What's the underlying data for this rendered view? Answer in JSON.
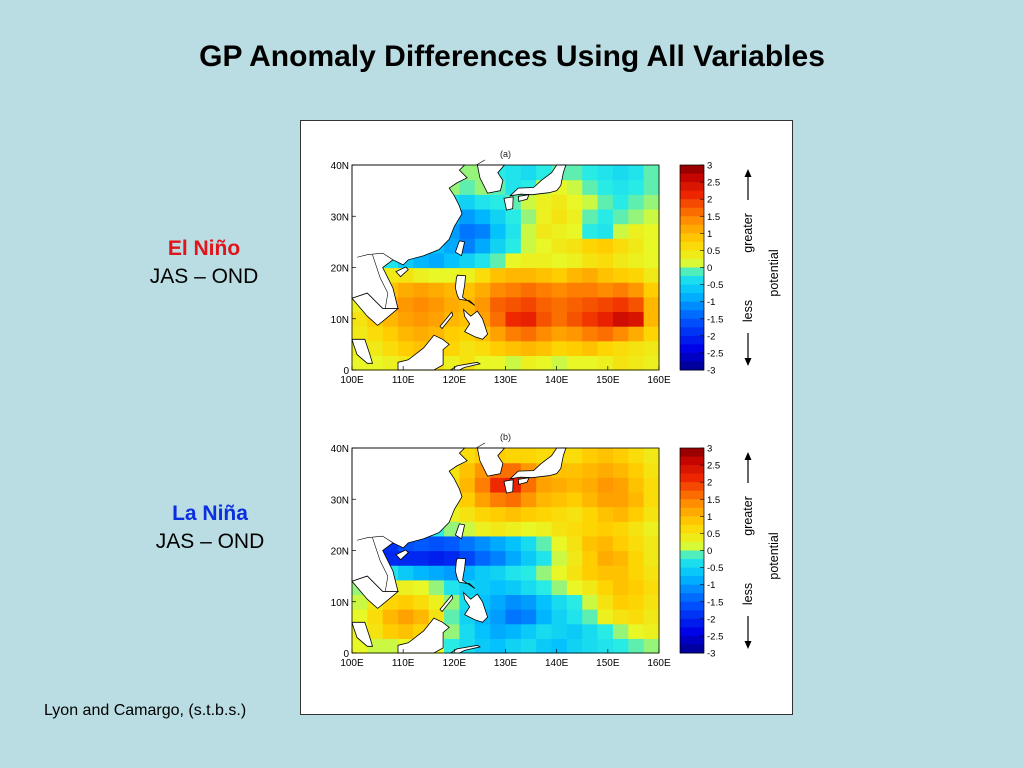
{
  "title": "GP Anomaly Differences Using All Variables",
  "left_labels": [
    {
      "name": "El Niño",
      "color": "#e0141a",
      "period": "JAS – OND"
    },
    {
      "name": "La Niña",
      "color": "#0a2ee0",
      "period": "JAS – OND"
    }
  ],
  "credit": "Lyon and Camargo, (s.t.b.s.)",
  "chart_data": [
    {
      "type": "heatmap",
      "title": "(a)",
      "x_ticks": [
        "100E",
        "110E",
        "120E",
        "130E",
        "140E",
        "150E",
        "160E"
      ],
      "y_ticks": [
        "0",
        "10N",
        "20N",
        "30N",
        "40N"
      ],
      "xlim": [
        100,
        160
      ],
      "ylim": [
        0,
        40
      ],
      "colorbar": {
        "ticks": [
          "3",
          "2.5",
          "2",
          "1.5",
          "1",
          "0.5",
          "0",
          "-0.5",
          "-1",
          "-1.5",
          "-2",
          "-2.5",
          "-3"
        ],
        "range": [
          -3,
          3
        ],
        "greater_label": "greater",
        "less_label": "less",
        "potential_label": "potential"
      },
      "grid_rows_south_to_north": [
        [
          0.2,
          0.2,
          0.3,
          0.4,
          0.5,
          0.6,
          0.3,
          0.5,
          0.2,
          0.2,
          0.1,
          0.3,
          0.2,
          0.1,
          0.2,
          0.2,
          0.3,
          0.5,
          0.4,
          0.3
        ],
        [
          0.3,
          0.4,
          0.6,
          0.8,
          0.9,
          0.8,
          0.7,
          0.5,
          0.6,
          0.8,
          0.9,
          1.0,
          0.9,
          0.7,
          0.8,
          0.9,
          0.7,
          0.6,
          0.5,
          0.4
        ],
        [
          0.4,
          0.6,
          0.8,
          1.0,
          1.1,
          1.0,
          0.8,
          0.7,
          0.9,
          1.2,
          1.5,
          1.6,
          1.4,
          1.2,
          1.3,
          1.5,
          1.6,
          1.4,
          1.1,
          0.7
        ],
        [
          0.5,
          0.8,
          1.0,
          1.2,
          1.3,
          1.2,
          1.0,
          0.9,
          1.2,
          1.6,
          2.1,
          2.2,
          1.8,
          1.6,
          1.8,
          2.0,
          2.2,
          2.5,
          2.4,
          1.0
        ],
        [
          0.3,
          0.7,
          1.1,
          1.3,
          1.4,
          1.3,
          1.1,
          1.0,
          1.3,
          1.7,
          1.8,
          1.9,
          1.7,
          1.6,
          1.7,
          1.8,
          1.9,
          2.0,
          1.8,
          1.0
        ],
        [
          0.2,
          0.5,
          0.9,
          1.1,
          1.2,
          1.1,
          1.0,
          0.9,
          1.1,
          1.4,
          1.5,
          1.6,
          1.5,
          1.4,
          1.5,
          1.5,
          1.4,
          1.5,
          1.3,
          0.8
        ],
        [
          0.1,
          0.2,
          0.4,
          0.5,
          0.3,
          0.2,
          0.2,
          0.3,
          0.6,
          0.9,
          1.0,
          1.0,
          0.9,
          0.8,
          1.0,
          1.1,
          0.9,
          0.8,
          0.7,
          0.4
        ],
        [
          0.0,
          0.1,
          -0.3,
          -0.6,
          -0.8,
          -0.9,
          -0.7,
          -0.5,
          -0.3,
          -0.1,
          0.2,
          0.3,
          0.3,
          0.2,
          0.3,
          0.5,
          0.6,
          0.4,
          0.3,
          0.2
        ],
        [
          0.0,
          0.1,
          0.2,
          0.1,
          -0.4,
          -0.7,
          -0.9,
          -1.2,
          -0.9,
          -0.5,
          -0.2,
          0.1,
          0.2,
          0.4,
          0.5,
          0.7,
          0.8,
          0.6,
          0.4,
          0.2
        ],
        [
          0.1,
          0.2,
          0.3,
          0.2,
          0.0,
          -0.6,
          -1.0,
          -1.3,
          -1.2,
          -0.7,
          -0.3,
          0.1,
          0.4,
          0.3,
          0.2,
          -0.2,
          -0.3,
          0.1,
          0.3,
          0.2
        ],
        [
          0.2,
          0.3,
          0.3,
          0.3,
          0.2,
          -0.4,
          -0.8,
          -1.0,
          -0.8,
          -0.5,
          -0.2,
          0.0,
          0.3,
          0.5,
          0.3,
          -0.1,
          -0.2,
          -0.1,
          0.0,
          0.1
        ],
        [
          0.2,
          0.3,
          0.3,
          0.3,
          0.3,
          -0.2,
          -0.4,
          -0.5,
          -0.3,
          -0.2,
          -0.1,
          0.1,
          0.3,
          0.4,
          0.2,
          0.1,
          -0.1,
          -0.2,
          -0.1,
          0.0
        ],
        [
          0.1,
          0.2,
          0.3,
          0.3,
          0.3,
          0.1,
          0.0,
          -0.1,
          0.0,
          -0.1,
          -0.3,
          -0.2,
          0.1,
          0.2,
          0.1,
          -0.1,
          -0.2,
          -0.3,
          -0.2,
          -0.1
        ],
        [
          0.1,
          0.2,
          0.3,
          0.3,
          0.3,
          0.2,
          0.1,
          0.0,
          0.0,
          -0.2,
          -0.3,
          -0.4,
          -0.2,
          -0.1,
          -0.1,
          -0.2,
          -0.3,
          -0.4,
          -0.3,
          -0.1
        ]
      ]
    },
    {
      "type": "heatmap",
      "title": "(b)",
      "x_ticks": [
        "100E",
        "110E",
        "120E",
        "130E",
        "140E",
        "150E",
        "160E"
      ],
      "y_ticks": [
        "0",
        "10N",
        "20N",
        "30N",
        "40N"
      ],
      "xlim": [
        100,
        160
      ],
      "ylim": [
        0,
        40
      ],
      "colorbar": {
        "ticks": [
          "3",
          "2.5",
          "2",
          "1.5",
          "1",
          "0.5",
          "0",
          "-0.5",
          "-1",
          "-1.5",
          "-2",
          "-2.5",
          "-3"
        ],
        "range": [
          -3,
          3
        ],
        "greater_label": "greater",
        "less_label": "less",
        "potential_label": "potential"
      },
      "grid_rows_south_to_north": [
        [
          0.2,
          0.1,
          0.1,
          0.2,
          0.3,
          0.2,
          -0.2,
          -0.4,
          -0.6,
          -0.7,
          -0.5,
          -0.4,
          -0.6,
          -0.7,
          -0.5,
          -0.4,
          -0.3,
          -0.2,
          -0.1,
          0.0
        ],
        [
          0.3,
          0.5,
          0.8,
          0.9,
          0.7,
          0.4,
          0.0,
          -0.4,
          -0.7,
          -0.9,
          -0.8,
          -0.6,
          -0.4,
          -0.5,
          -0.6,
          -0.4,
          -0.2,
          0.0,
          0.2,
          0.3
        ],
        [
          0.2,
          0.6,
          1.0,
          1.2,
          1.0,
          0.5,
          -0.1,
          -0.5,
          -0.8,
          -1.0,
          -1.3,
          -1.2,
          -0.8,
          -0.5,
          -0.3,
          -0.1,
          0.3,
          0.5,
          0.6,
          0.4
        ],
        [
          0.1,
          0.4,
          0.7,
          0.8,
          0.6,
          0.3,
          0.0,
          -0.4,
          -0.7,
          -0.9,
          -1.1,
          -1.0,
          -0.7,
          -0.4,
          -0.2,
          0.1,
          0.5,
          0.8,
          0.7,
          0.5
        ],
        [
          0.0,
          0.2,
          0.3,
          0.3,
          0.2,
          0.0,
          -0.3,
          -0.5,
          -0.6,
          -0.7,
          -0.6,
          -0.4,
          -0.2,
          0.0,
          0.2,
          0.4,
          0.7,
          0.9,
          0.8,
          0.6
        ],
        [
          0.0,
          0.0,
          -0.3,
          -0.6,
          -0.8,
          -0.9,
          -1.0,
          -0.8,
          -0.6,
          -0.5,
          -0.3,
          -0.2,
          0.0,
          0.2,
          0.5,
          0.8,
          0.9,
          0.9,
          0.7,
          0.5
        ],
        [
          0.0,
          -1.8,
          -2.0,
          -2.0,
          -2.0,
          -2.1,
          -2.0,
          -1.7,
          -1.4,
          -1.2,
          -0.9,
          -0.6,
          -0.3,
          0.1,
          0.4,
          0.8,
          1.1,
          1.0,
          0.7,
          0.4
        ],
        [
          0.0,
          -1.7,
          -1.9,
          -1.6,
          -1.5,
          -1.6,
          -1.5,
          -1.3,
          -1.1,
          -0.9,
          -0.7,
          -0.4,
          -0.1,
          0.2,
          0.5,
          0.9,
          1.0,
          0.8,
          0.6,
          0.4
        ],
        [
          0.1,
          0.2,
          0.1,
          0.0,
          -0.3,
          -0.2,
          0.0,
          0.1,
          0.3,
          0.4,
          0.3,
          0.2,
          0.3,
          0.5,
          0.6,
          0.7,
          0.8,
          0.7,
          0.5,
          0.3
        ],
        [
          0.2,
          0.3,
          0.3,
          0.4,
          0.4,
          0.2,
          0.3,
          0.5,
          0.7,
          0.8,
          0.9,
          0.8,
          0.7,
          0.6,
          0.5,
          0.7,
          0.9,
          1.0,
          0.8,
          0.5
        ],
        [
          0.2,
          0.3,
          0.3,
          0.4,
          0.5,
          0.4,
          0.5,
          0.8,
          1.2,
          1.5,
          1.6,
          1.3,
          1.0,
          0.9,
          0.8,
          1.0,
          1.2,
          1.2,
          1.0,
          0.6
        ],
        [
          0.2,
          0.3,
          0.3,
          0.3,
          0.4,
          0.4,
          0.6,
          1.0,
          1.5,
          2.1,
          2.2,
          1.6,
          1.2,
          1.1,
          1.0,
          1.1,
          1.3,
          1.2,
          0.9,
          0.6
        ],
        [
          0.1,
          0.2,
          0.3,
          0.3,
          0.3,
          0.3,
          0.5,
          0.9,
          1.3,
          1.6,
          1.6,
          1.3,
          1.0,
          0.9,
          0.9,
          1.0,
          1.1,
          1.0,
          0.8,
          0.5
        ],
        [
          0.1,
          0.2,
          0.3,
          0.3,
          0.3,
          0.3,
          0.4,
          0.6,
          0.8,
          0.8,
          0.7,
          0.7,
          0.6,
          0.6,
          0.6,
          0.8,
          0.9,
          0.8,
          0.6,
          0.4
        ]
      ]
    }
  ]
}
